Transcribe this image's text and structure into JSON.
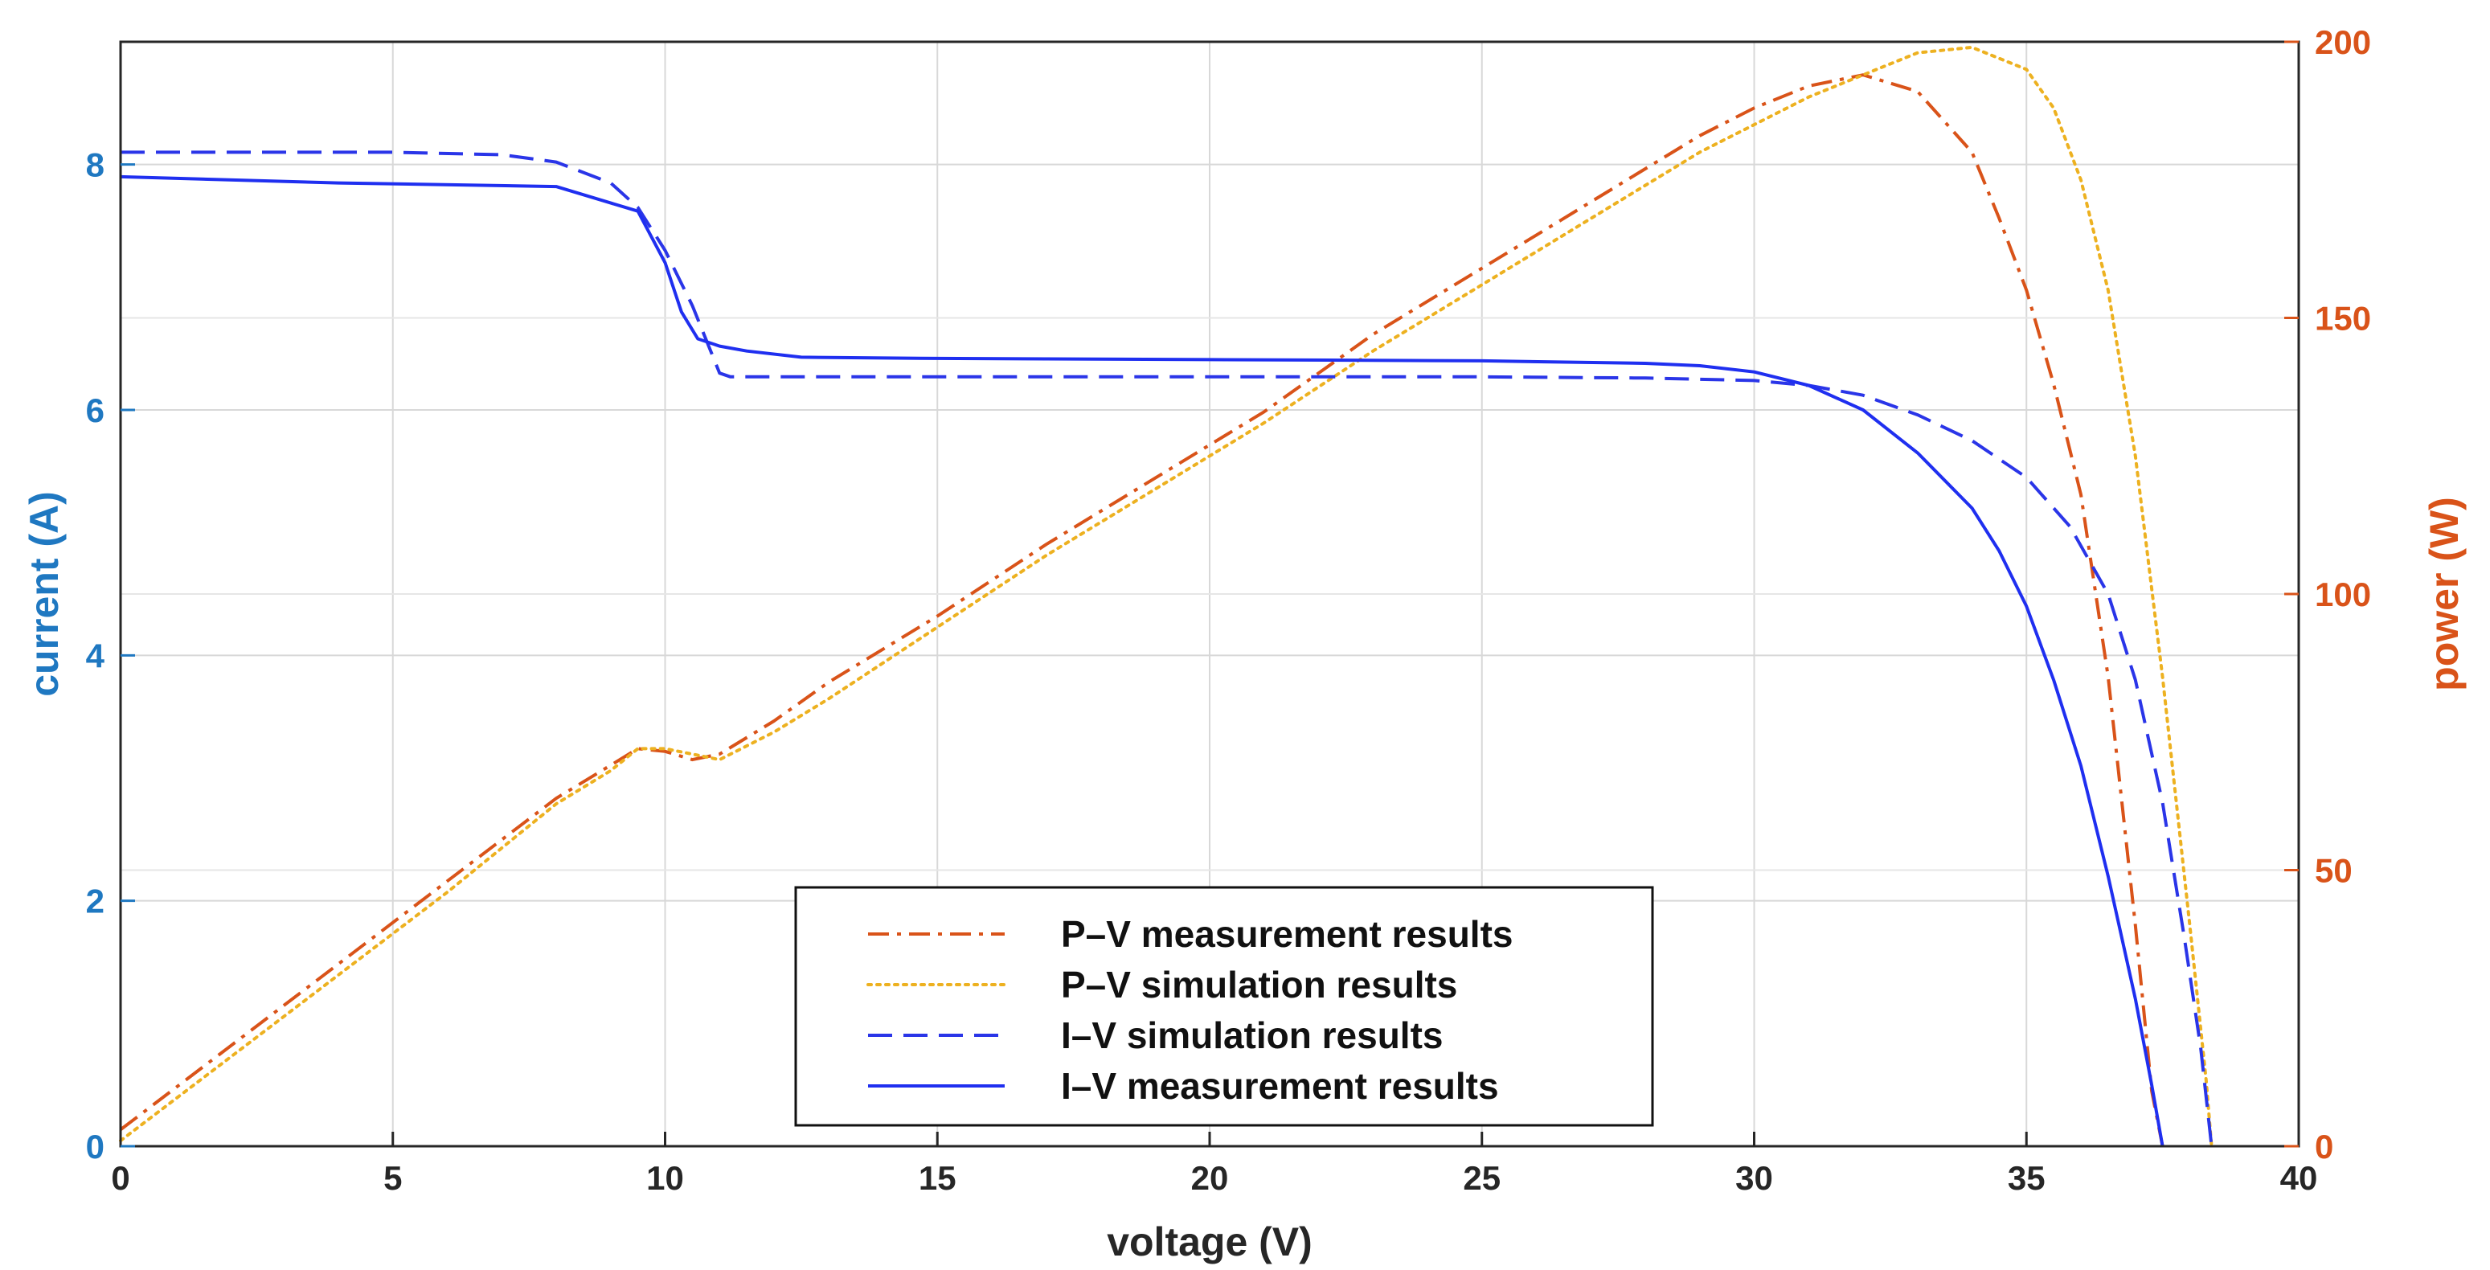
{
  "chart_data": {
    "type": "line",
    "xlabel": "voltage (V)",
    "ylabel_left": "current (A)",
    "ylabel_right": "power (W)",
    "xlim": [
      0,
      40
    ],
    "ylim_left": [
      0,
      9
    ],
    "ylim_right": [
      0,
      200
    ],
    "x_ticks": [
      "0",
      "5",
      "10",
      "15",
      "20",
      "25",
      "30",
      "35",
      "40"
    ],
    "y_left_ticks": [
      "0",
      "2",
      "4",
      "6",
      "8"
    ],
    "y_right_ticks": [
      "0",
      "50",
      "100",
      "150",
      "200"
    ],
    "grid": true,
    "legend_position": "bottom-center",
    "colors": {
      "pv_measurement": "#d95319",
      "pv_simulation": "#edb120",
      "iv_simulation": "#2a35e8",
      "iv_measurement": "#1f2ff0",
      "left_axis": "#1f78c1",
      "right_axis": "#d95319"
    },
    "series": [
      {
        "name": "P–V measurement results",
        "axis": "right",
        "style": "dashdot",
        "color": "#d95319",
        "points": [
          [
            0,
            3
          ],
          [
            2,
            18
          ],
          [
            4,
            33
          ],
          [
            6,
            48
          ],
          [
            8,
            63
          ],
          [
            9,
            69
          ],
          [
            9.5,
            72
          ],
          [
            10,
            71.5
          ],
          [
            10.5,
            70
          ],
          [
            11,
            71
          ],
          [
            12,
            77
          ],
          [
            13,
            84
          ],
          [
            15,
            96
          ],
          [
            17,
            109
          ],
          [
            19,
            121
          ],
          [
            21,
            133
          ],
          [
            23,
            147
          ],
          [
            25,
            159
          ],
          [
            27,
            171
          ],
          [
            29,
            183
          ],
          [
            30,
            188
          ],
          [
            31,
            192
          ],
          [
            32,
            194
          ],
          [
            33,
            191
          ],
          [
            34,
            180
          ],
          [
            34.5,
            168
          ],
          [
            35,
            155
          ],
          [
            35.5,
            138
          ],
          [
            36,
            118
          ],
          [
            36.5,
            85
          ],
          [
            37,
            40
          ],
          [
            37.3,
            10
          ],
          [
            37.5,
            0
          ]
        ]
      },
      {
        "name": "P–V simulation results",
        "axis": "right",
        "style": "dotted",
        "color": "#edb120",
        "points": [
          [
            0,
            1
          ],
          [
            2,
            16
          ],
          [
            4,
            31
          ],
          [
            6,
            46
          ],
          [
            8,
            62
          ],
          [
            9,
            68
          ],
          [
            9.5,
            72
          ],
          [
            10,
            72
          ],
          [
            10.5,
            71
          ],
          [
            11,
            70
          ],
          [
            12,
            75
          ],
          [
            13,
            81
          ],
          [
            15,
            94
          ],
          [
            17,
            107
          ],
          [
            19,
            119
          ],
          [
            21,
            131
          ],
          [
            23,
            144
          ],
          [
            25,
            156
          ],
          [
            27,
            168
          ],
          [
            29,
            180
          ],
          [
            31,
            190
          ],
          [
            32,
            194
          ],
          [
            33,
            198
          ],
          [
            34,
            199
          ],
          [
            35,
            195
          ],
          [
            35.5,
            188
          ],
          [
            36,
            175
          ],
          [
            36.5,
            155
          ],
          [
            37,
            125
          ],
          [
            37.5,
            85
          ],
          [
            38,
            40
          ],
          [
            38.3,
            12
          ],
          [
            38.4,
            0
          ]
        ]
      },
      {
        "name": "I–V simulation results",
        "axis": "left",
        "style": "dashed",
        "color": "#2a35e8",
        "points": [
          [
            0,
            8.1
          ],
          [
            5,
            8.1
          ],
          [
            7,
            8.08
          ],
          [
            8,
            8.02
          ],
          [
            9,
            7.85
          ],
          [
            9.5,
            7.65
          ],
          [
            10,
            7.3
          ],
          [
            10.5,
            6.85
          ],
          [
            11,
            6.3
          ],
          [
            11.2,
            6.27
          ],
          [
            15,
            6.27
          ],
          [
            20,
            6.27
          ],
          [
            25,
            6.27
          ],
          [
            28,
            6.26
          ],
          [
            30,
            6.24
          ],
          [
            31,
            6.2
          ],
          [
            32,
            6.12
          ],
          [
            33,
            5.96
          ],
          [
            34,
            5.75
          ],
          [
            35,
            5.45
          ],
          [
            35.8,
            5.05
          ],
          [
            36.5,
            4.5
          ],
          [
            37,
            3.8
          ],
          [
            37.5,
            2.8
          ],
          [
            37.9,
            1.7
          ],
          [
            38.2,
            0.8
          ],
          [
            38.4,
            0
          ]
        ]
      },
      {
        "name": "I–V measurement results",
        "axis": "left",
        "style": "solid",
        "color": "#1f2ff0",
        "points": [
          [
            0,
            7.9
          ],
          [
            4,
            7.85
          ],
          [
            8,
            7.82
          ],
          [
            9.5,
            7.62
          ],
          [
            10,
            7.2
          ],
          [
            10.3,
            6.8
          ],
          [
            10.6,
            6.58
          ],
          [
            11,
            6.52
          ],
          [
            11.5,
            6.48
          ],
          [
            12.5,
            6.43
          ],
          [
            15,
            6.42
          ],
          [
            20,
            6.41
          ],
          [
            25,
            6.4
          ],
          [
            28,
            6.38
          ],
          [
            29,
            6.36
          ],
          [
            30,
            6.31
          ],
          [
            31,
            6.2
          ],
          [
            32,
            6.0
          ],
          [
            33,
            5.65
          ],
          [
            34,
            5.2
          ],
          [
            34.5,
            4.85
          ],
          [
            35,
            4.4
          ],
          [
            35.5,
            3.8
          ],
          [
            36,
            3.1
          ],
          [
            36.5,
            2.2
          ],
          [
            37,
            1.2
          ],
          [
            37.3,
            0.5
          ],
          [
            37.5,
            0
          ]
        ]
      }
    ]
  }
}
